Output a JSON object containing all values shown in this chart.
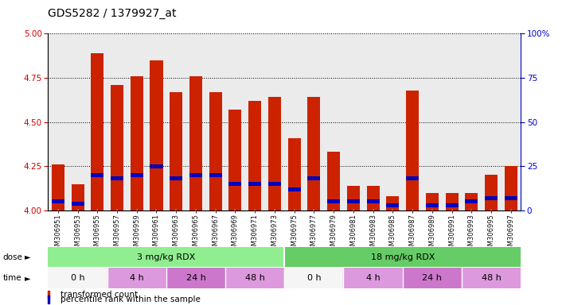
{
  "title": "GDS5282 / 1379927_at",
  "samples": [
    "GSM306951",
    "GSM306953",
    "GSM306955",
    "GSM306957",
    "GSM306959",
    "GSM306961",
    "GSM306963",
    "GSM306965",
    "GSM306967",
    "GSM306969",
    "GSM306971",
    "GSM306973",
    "GSM306975",
    "GSM306977",
    "GSM306979",
    "GSM306981",
    "GSM306983",
    "GSM306985",
    "GSM306987",
    "GSM306989",
    "GSM306991",
    "GSM306993",
    "GSM306995",
    "GSM306997"
  ],
  "red_values": [
    4.26,
    4.15,
    4.89,
    4.71,
    4.76,
    4.85,
    4.67,
    4.76,
    4.67,
    4.57,
    4.62,
    4.64,
    4.41,
    4.64,
    4.33,
    4.14,
    4.14,
    4.08,
    4.68,
    4.1,
    4.1,
    4.1,
    4.2,
    4.25
  ],
  "blue_values": [
    4.05,
    4.04,
    4.2,
    4.18,
    4.2,
    4.25,
    4.18,
    4.2,
    4.2,
    4.15,
    4.15,
    4.15,
    4.12,
    4.18,
    4.05,
    4.05,
    4.05,
    4.03,
    4.18,
    4.03,
    4.03,
    4.05,
    4.07,
    4.07
  ],
  "ylim": [
    4.0,
    5.0
  ],
  "yticks_left": [
    4.0,
    4.25,
    4.5,
    4.75,
    5.0
  ],
  "yticks_right": [
    0,
    25,
    50,
    75,
    100
  ],
  "dose_groups": [
    {
      "label": "3 mg/kg RDX",
      "start": 0,
      "end": 12,
      "color": "#90EE90"
    },
    {
      "label": "18 mg/kg RDX",
      "start": 12,
      "end": 24,
      "color": "#66CC66"
    }
  ],
  "time_groups": [
    {
      "label": "0 h",
      "start": 0,
      "end": 3,
      "color": "#F5F5F5"
    },
    {
      "label": "4 h",
      "start": 3,
      "end": 6,
      "color": "#DD99DD"
    },
    {
      "label": "24 h",
      "start": 6,
      "end": 9,
      "color": "#CC77CC"
    },
    {
      "label": "48 h",
      "start": 9,
      "end": 12,
      "color": "#DD99DD"
    },
    {
      "label": "0 h",
      "start": 12,
      "end": 15,
      "color": "#F5F5F5"
    },
    {
      "label": "4 h",
      "start": 15,
      "end": 18,
      "color": "#DD99DD"
    },
    {
      "label": "24 h",
      "start": 18,
      "end": 21,
      "color": "#CC77CC"
    },
    {
      "label": "48 h",
      "start": 21,
      "end": 24,
      "color": "#DD99DD"
    }
  ],
  "bar_color": "#CC2200",
  "blue_color": "#0000BB",
  "background_color": "#D8D8D8",
  "plot_bg_color": "#EBEBEB",
  "title_fontsize": 10,
  "axis_label_color_left": "#CC0000",
  "axis_label_color_right": "#0000CC",
  "blue_bar_height": 0.022,
  "bar_width": 0.65
}
